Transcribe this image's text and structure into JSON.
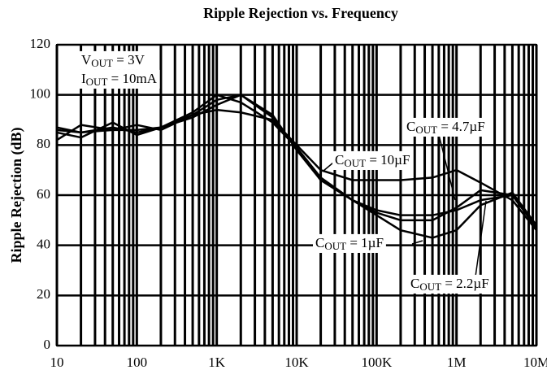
{
  "chart_data": {
    "type": "line",
    "title": "Ripple Rejection vs. Frequency",
    "y_label": "Ripple Rejection (dB)",
    "log_x": true,
    "grid": true,
    "x": [
      10,
      20,
      50,
      100,
      200,
      500,
      1000,
      2000,
      5000,
      10000,
      20000,
      50000,
      100000,
      200000,
      500000,
      1000000,
      2000000,
      5000000,
      10000000
    ],
    "series": [
      {
        "color": "#000000",
        "label": {
          "base": "C",
          "sub": "OUT",
          "rest": " = 10µF"
        },
        "values": [
          86,
          85,
          87,
          85,
          87,
          92,
          94,
          93,
          90,
          80,
          70,
          66,
          66,
          66,
          67,
          70,
          65,
          58,
          46
        ]
      },
      {
        "color": "#000000",
        "label": {
          "base": "C",
          "sub": "OUT",
          "rest": " = 4.7µF"
        },
        "values": [
          85,
          83,
          89,
          84,
          87,
          93,
          100,
          97,
          89,
          79,
          66,
          58,
          53,
          50,
          50,
          55,
          62,
          60,
          47
        ]
      },
      {
        "color": "#000000",
        "label": {
          "base": "C",
          "sub": "OUT",
          "rest": " = 1µF"
        },
        "values": [
          82,
          88,
          86,
          86,
          87,
          91,
          96,
          100,
          92,
          78,
          66,
          58,
          54,
          52,
          52,
          54,
          58,
          60,
          47
        ]
      },
      {
        "color": "#000000",
        "label": {
          "base": "C",
          "sub": "OUT",
          "rest": " = 2.2µF"
        },
        "values": [
          87,
          85,
          86,
          88,
          86,
          92,
          98,
          100,
          91,
          79,
          67,
          58,
          52,
          46,
          43,
          46,
          56,
          61,
          48
        ]
      }
    ],
    "annotations": [
      {
        "base": "V",
        "sub": "OUT",
        "rest": " = 3V"
      },
      {
        "base": "I",
        "sub": "OUT",
        "rest": " = 10mA"
      }
    ],
    "xlim": [
      10,
      10000000
    ],
    "xticks": [
      10,
      100,
      {
        "value": 1000,
        "label": "1K"
      },
      {
        "value": 10000,
        "label": "10K"
      },
      {
        "value": 100000,
        "label": "100K"
      },
      {
        "value": 1000000,
        "label": "1M"
      },
      {
        "value": 10000000,
        "label": "10M"
      }
    ],
    "xminorticks": [
      20,
      30,
      40,
      50,
      60,
      70,
      80,
      90,
      200,
      300,
      400,
      500,
      600,
      700,
      800,
      900,
      2000,
      3000,
      4000,
      5000,
      6000,
      7000,
      8000,
      9000,
      20000,
      30000,
      40000,
      50000,
      60000,
      70000,
      80000,
      90000,
      200000,
      300000,
      400000,
      500000,
      600000,
      700000,
      800000,
      900000,
      2000000,
      3000000,
      4000000,
      5000000,
      6000000,
      7000000,
      8000000,
      9000000
    ],
    "ylim": [
      0,
      120
    ],
    "yticks": [
      0,
      20,
      40,
      60,
      80,
      100,
      120
    ]
  }
}
